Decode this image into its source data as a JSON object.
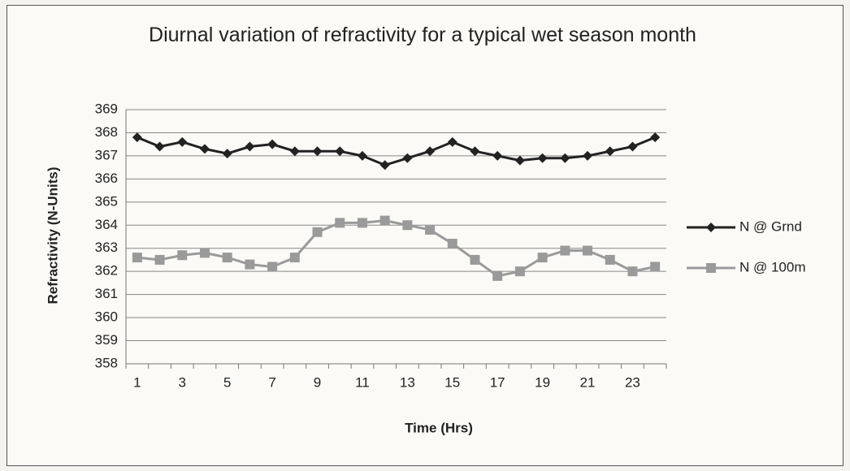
{
  "chart_data": {
    "type": "line",
    "title": "Diurnal variation of refractivity for a typical wet season month",
    "x_label": "Time (Hrs)",
    "y_label": "Refractivity (N-Units)",
    "categories": [
      "1",
      null,
      "3",
      null,
      "5",
      null,
      "7",
      null,
      "9",
      null,
      "11",
      null,
      "13",
      null,
      "15",
      null,
      "17",
      null,
      "19",
      null,
      "21",
      null,
      "23",
      null
    ],
    "series": [
      {
        "name": "N @ Grnd",
        "color": "#222222",
        "marker": "diamond",
        "values": [
          367.8,
          367.4,
          367.6,
          367.3,
          367.1,
          367.4,
          367.5,
          367.2,
          367.2,
          367.2,
          367.0,
          366.6,
          366.9,
          367.2,
          367.6,
          367.2,
          367.0,
          366.8,
          366.9,
          366.9,
          367.0,
          367.2,
          367.4,
          367.8
        ]
      },
      {
        "name": "N @ 100m",
        "color": "#9a9a9a",
        "marker": "square",
        "values": [
          362.6,
          362.5,
          362.7,
          362.8,
          362.6,
          362.3,
          362.2,
          362.6,
          363.7,
          364.1,
          364.1,
          364.2,
          364.0,
          363.8,
          363.2,
          362.5,
          361.8,
          362.0,
          362.6,
          362.9,
          362.9,
          362.5,
          362.0,
          362.2
        ]
      }
    ],
    "ylim": [
      358,
      369
    ],
    "yticks": [
      358,
      359,
      360,
      361,
      362,
      363,
      364,
      365,
      366,
      367,
      368,
      369
    ],
    "grid": true,
    "legend": "right"
  }
}
